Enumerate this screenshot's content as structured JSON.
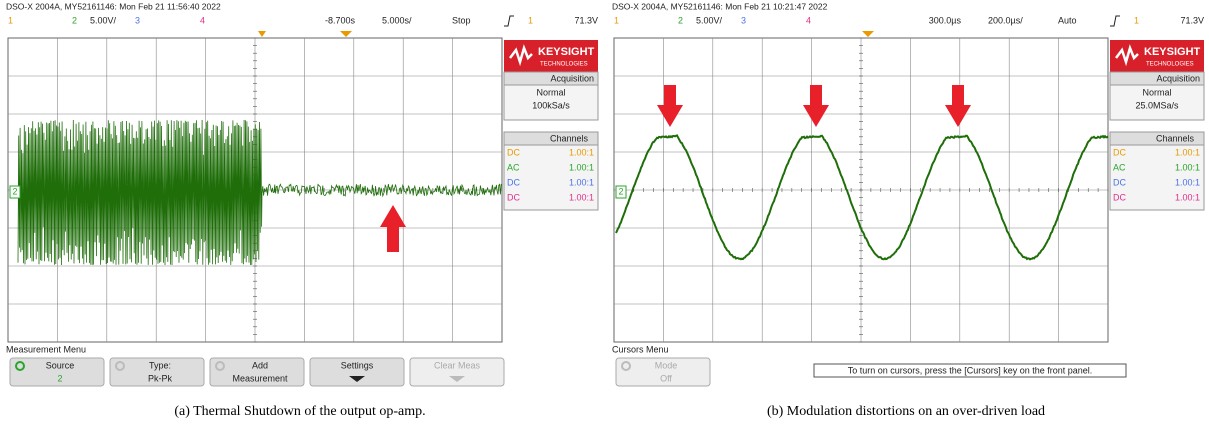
{
  "panels": [
    {
      "header": "DSO-X 2004A, MY52161146: Mon Feb 21 11:56:40 2022",
      "channels": [
        "1",
        "2",
        "3",
        "4"
      ],
      "ch2_scale": "5.00V/",
      "time_offset": "-8.700s",
      "time_scale": "5.000s/",
      "run_state": "Stop",
      "trigger_channel": "1",
      "trigger_level": "71.3V",
      "logo": {
        "brand": "KEYSIGHT",
        "sub": "TECHNOLOGIES"
      },
      "sidebar": {
        "acquisition_title": "Acquisition",
        "acq_mode": "Normal",
        "sample_rate": "100kSa/s",
        "channels_title": "Channels",
        "channel_rows": [
          {
            "coupling": "DC",
            "probe": "1.00:1"
          },
          {
            "coupling": "AC",
            "probe": "1.00:1"
          },
          {
            "coupling": "DC",
            "probe": "1.00:1"
          },
          {
            "coupling": "DC",
            "probe": "1.00:1"
          }
        ]
      },
      "ground_marker": "2",
      "menu": {
        "title": "Measurement Menu",
        "buttons": [
          {
            "label": "Source",
            "value": "2"
          },
          {
            "label": "Type:",
            "value": "Pk-Pk"
          },
          {
            "label": "Add",
            "value": "Measurement"
          },
          {
            "label": "Settings"
          },
          {
            "label": "Clear Meas",
            "disabled": true
          }
        ]
      },
      "caption": "(a) Thermal Shutdown of the output op-amp."
    },
    {
      "header": "DSO-X 2004A, MY52161146: Mon Feb 21 10:21:47 2022",
      "channels": [
        "1",
        "2",
        "3",
        "4"
      ],
      "ch2_scale": "5.00V/",
      "time_offset": "300.0µs",
      "time_scale": "200.0µs/",
      "run_state": "Auto",
      "trigger_channel": "1",
      "trigger_level": "71.3V",
      "logo": {
        "brand": "KEYSIGHT",
        "sub": "TECHNOLOGIES"
      },
      "sidebar": {
        "acquisition_title": "Acquisition",
        "acq_mode": "Normal",
        "sample_rate": "25.0MSa/s",
        "channels_title": "Channels",
        "channel_rows": [
          {
            "coupling": "DC",
            "probe": "1.00:1"
          },
          {
            "coupling": "AC",
            "probe": "1.00:1"
          },
          {
            "coupling": "DC",
            "probe": "1.00:1"
          },
          {
            "coupling": "DC",
            "probe": "1.00:1"
          }
        ]
      },
      "ground_marker": "2",
      "menu": {
        "title": "Cursors Menu",
        "buttons": [
          {
            "label": "Mode",
            "value": "Off",
            "disabled": true
          }
        ],
        "message": "To turn on cursors, press the [Cursors] key on the front panel."
      },
      "caption": "(b) Modulation distortions on an over-driven load"
    }
  ]
}
